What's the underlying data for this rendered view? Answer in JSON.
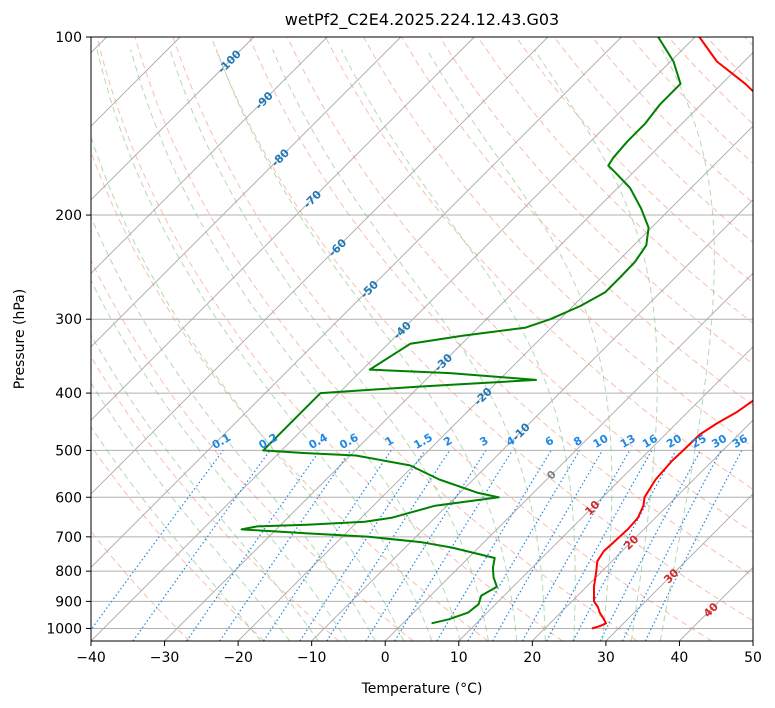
{
  "chart_data": {
    "type": "line",
    "diagram": "skew-T log-P",
    "title": "wetPf2_C2E4.2025.224.12.43.G03",
    "xlabel": "Temperature (°C)",
    "ylabel": "Pressure (hPa)",
    "xlim": [
      -40,
      50
    ],
    "ylim": [
      1050,
      100
    ],
    "y_scale": "log",
    "x_ticks": [
      -40,
      -30,
      -20,
      -10,
      0,
      10,
      20,
      30,
      40,
      50
    ],
    "x_tick_labels": [
      "−40",
      "−30",
      "−20",
      "−10",
      "0",
      "10",
      "20",
      "30",
      "40",
      "50"
    ],
    "y_ticks": [
      1000,
      900,
      800,
      700,
      600,
      500,
      400,
      300,
      200,
      100
    ],
    "y_tick_labels": [
      "1000",
      "900",
      "800",
      "700",
      "600",
      "500",
      "400",
      "300",
      "200",
      "100"
    ],
    "grid": true,
    "skew_deg": 45,
    "colors": {
      "temperature": "#ff0000",
      "dewpoint": "#008000",
      "dry_adiabat": "#f08060",
      "moist_adiabat": "#80c080",
      "mixing_ratio": "#1e88e5",
      "isotherm": "#999999",
      "isotherm_label": "#1f77b4",
      "isotherm_label_hot": "#d62728"
    },
    "series": [
      {
        "key": "temperature",
        "points": [
          [
            1000,
            26.4
          ],
          [
            990,
            27.2
          ],
          [
            980,
            27.6
          ],
          [
            960,
            26.5
          ],
          [
            940,
            25.3
          ],
          [
            920,
            24.3
          ],
          [
            900,
            23.0
          ],
          [
            850,
            21.0
          ],
          [
            800,
            19.2
          ],
          [
            770,
            18.0
          ],
          [
            740,
            17.5
          ],
          [
            720,
            17.6
          ],
          [
            680,
            17.8
          ],
          [
            650,
            17.6
          ],
          [
            620,
            16.7
          ],
          [
            600,
            15.7
          ],
          [
            560,
            14.8
          ],
          [
            520,
            14.5
          ],
          [
            500,
            14.6
          ],
          [
            470,
            14.7
          ],
          [
            450,
            15.5
          ],
          [
            430,
            16.7
          ],
          [
            410,
            17.4
          ],
          [
            395,
            17.2
          ],
          [
            380,
            15.8
          ],
          [
            365,
            14.0
          ],
          [
            350,
            13.3
          ],
          [
            330,
            11.7
          ],
          [
            300,
            9.2
          ],
          [
            280,
            6.7
          ],
          [
            260,
            4.2
          ],
          [
            240,
            1.5
          ],
          [
            220,
            -1.6
          ],
          [
            200,
            -4.6
          ],
          [
            185,
            -7.3
          ],
          [
            165,
            -10.4
          ],
          [
            150,
            -14.0
          ],
          [
            140,
            -17.4
          ],
          [
            130,
            -21.1
          ],
          [
            120,
            -26.8
          ],
          [
            110,
            -33.7
          ],
          [
            100,
            -39.4
          ]
        ]
      },
      {
        "key": "dewpoint",
        "points": [
          [
            980,
            3.9
          ],
          [
            965,
            5.7
          ],
          [
            940,
            7.4
          ],
          [
            910,
            7.7
          ],
          [
            880,
            6.9
          ],
          [
            850,
            7.8
          ],
          [
            820,
            6.1
          ],
          [
            790,
            4.7
          ],
          [
            760,
            3.6
          ],
          [
            730,
            -3.6
          ],
          [
            715,
            -8.4
          ],
          [
            700,
            -16.4
          ],
          [
            690,
            -25.5
          ],
          [
            680,
            -34.7
          ],
          [
            672,
            -33.0
          ],
          [
            668,
            -26.4
          ],
          [
            660,
            -19.0
          ],
          [
            650,
            -15.9
          ],
          [
            620,
            -11.6
          ],
          [
            600,
            -4.1
          ],
          [
            590,
            -7.5
          ],
          [
            560,
            -14.6
          ],
          [
            530,
            -20.5
          ],
          [
            510,
            -29.2
          ],
          [
            505,
            -36.7
          ],
          [
            500,
            -42.5
          ],
          [
            400,
            -42.5
          ],
          [
            390,
            -30.0
          ],
          [
            380,
            -15.0
          ],
          [
            370,
            -27.6
          ],
          [
            365,
            -39.0
          ],
          [
            330,
            -37.0
          ],
          [
            320,
            -31.0
          ],
          [
            310,
            -23.5
          ],
          [
            300,
            -21.3
          ],
          [
            285,
            -19.0
          ],
          [
            270,
            -17.5
          ],
          [
            255,
            -17.5
          ],
          [
            240,
            -17.6
          ],
          [
            225,
            -18.3
          ],
          [
            210,
            -20.4
          ],
          [
            195,
            -24.0
          ],
          [
            180,
            -28.3
          ],
          [
            170,
            -32.2
          ],
          [
            165,
            -34.3
          ],
          [
            160,
            -34.7
          ],
          [
            150,
            -35.0
          ],
          [
            140,
            -35.0
          ],
          [
            130,
            -35.6
          ],
          [
            120,
            -35.6
          ],
          [
            110,
            -39.6
          ],
          [
            100,
            -45.0
          ]
        ]
      }
    ],
    "isotherm_labels": [
      {
        "t": -100,
        "p": 110,
        "text": "-100",
        "color": "#1f77b4"
      },
      {
        "t": -90,
        "p": 128,
        "text": "-90",
        "color": "#1f77b4"
      },
      {
        "t": -80,
        "p": 160,
        "text": "-80",
        "color": "#1f77b4"
      },
      {
        "t": -70,
        "p": 188,
        "text": "-70",
        "color": "#1f77b4"
      },
      {
        "t": -60,
        "p": 227,
        "text": "-60",
        "color": "#1f77b4"
      },
      {
        "t": -50,
        "p": 267,
        "text": "-50",
        "color": "#1f77b4"
      },
      {
        "t": -40,
        "p": 313,
        "text": "-40",
        "color": "#1f77b4"
      },
      {
        "t": -30,
        "p": 355,
        "text": "-30",
        "color": "#1f77b4"
      },
      {
        "t": -20,
        "p": 405,
        "text": "-20",
        "color": "#1f77b4"
      },
      {
        "t": -10,
        "p": 465,
        "text": "-10",
        "color": "#1f77b4"
      },
      {
        "t": 0,
        "p": 550,
        "text": "0",
        "color": "#808080"
      },
      {
        "t": 10,
        "p": 625,
        "text": "10",
        "color": "#d62728"
      },
      {
        "t": 20,
        "p": 715,
        "text": "20",
        "color": "#d62728"
      },
      {
        "t": 30,
        "p": 815,
        "text": "30",
        "color": "#d62728"
      },
      {
        "t": 40,
        "p": 930,
        "text": "40",
        "color": "#d62728"
      }
    ],
    "mixing_ratio_labels": [
      "0.1",
      "0.2",
      "0.4",
      "0.6",
      "1",
      "1.5",
      "2",
      "3",
      "4",
      "6",
      "8",
      "10",
      "13",
      "16",
      "20",
      "25",
      "30",
      "36"
    ],
    "mixing_ratio_label_pressure": 500
  }
}
